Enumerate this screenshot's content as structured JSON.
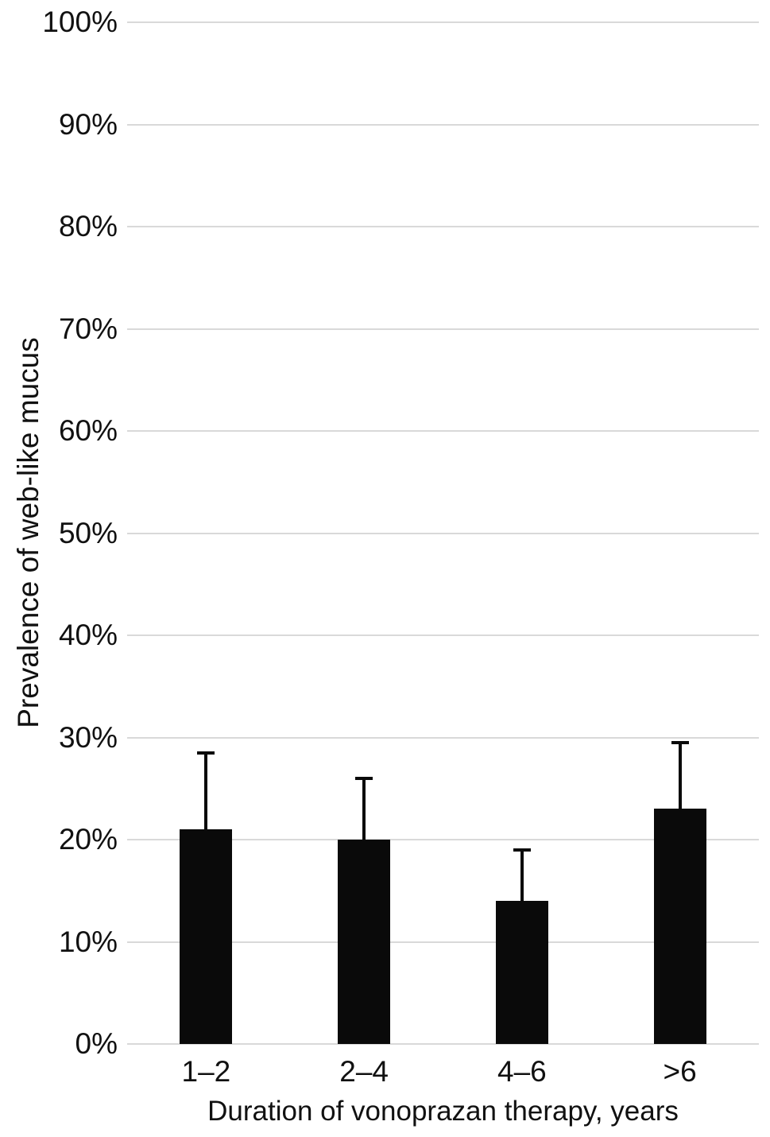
{
  "chart_data": {
    "type": "bar",
    "ylabel": "Prevalence of web-like mucus",
    "xlabel": "Duration of vonoprazan therapy, years",
    "categories": [
      "1–2",
      "2–4",
      "4–6",
      ">6"
    ],
    "values": [
      21,
      20,
      14,
      23
    ],
    "error_bar_tops": [
      28.5,
      26,
      19,
      29.5
    ],
    "ylim": [
      0,
      100
    ],
    "yticks": [
      {
        "value": 0,
        "label": "0%"
      },
      {
        "value": 10,
        "label": "10%"
      },
      {
        "value": 20,
        "label": "20%"
      },
      {
        "value": 30,
        "label": "30%"
      },
      {
        "value": 40,
        "label": "40%"
      },
      {
        "value": 50,
        "label": "50%"
      },
      {
        "value": 60,
        "label": "60%"
      },
      {
        "value": 70,
        "label": "70%"
      },
      {
        "value": 80,
        "label": "80%"
      },
      {
        "value": 90,
        "label": "90%"
      },
      {
        "value": 100,
        "label": "100%"
      }
    ],
    "grid": true,
    "legend": "none",
    "bar_color": "#0a0a0a",
    "gridline_color": "#d9d9d9",
    "text_color": "#111111"
  }
}
